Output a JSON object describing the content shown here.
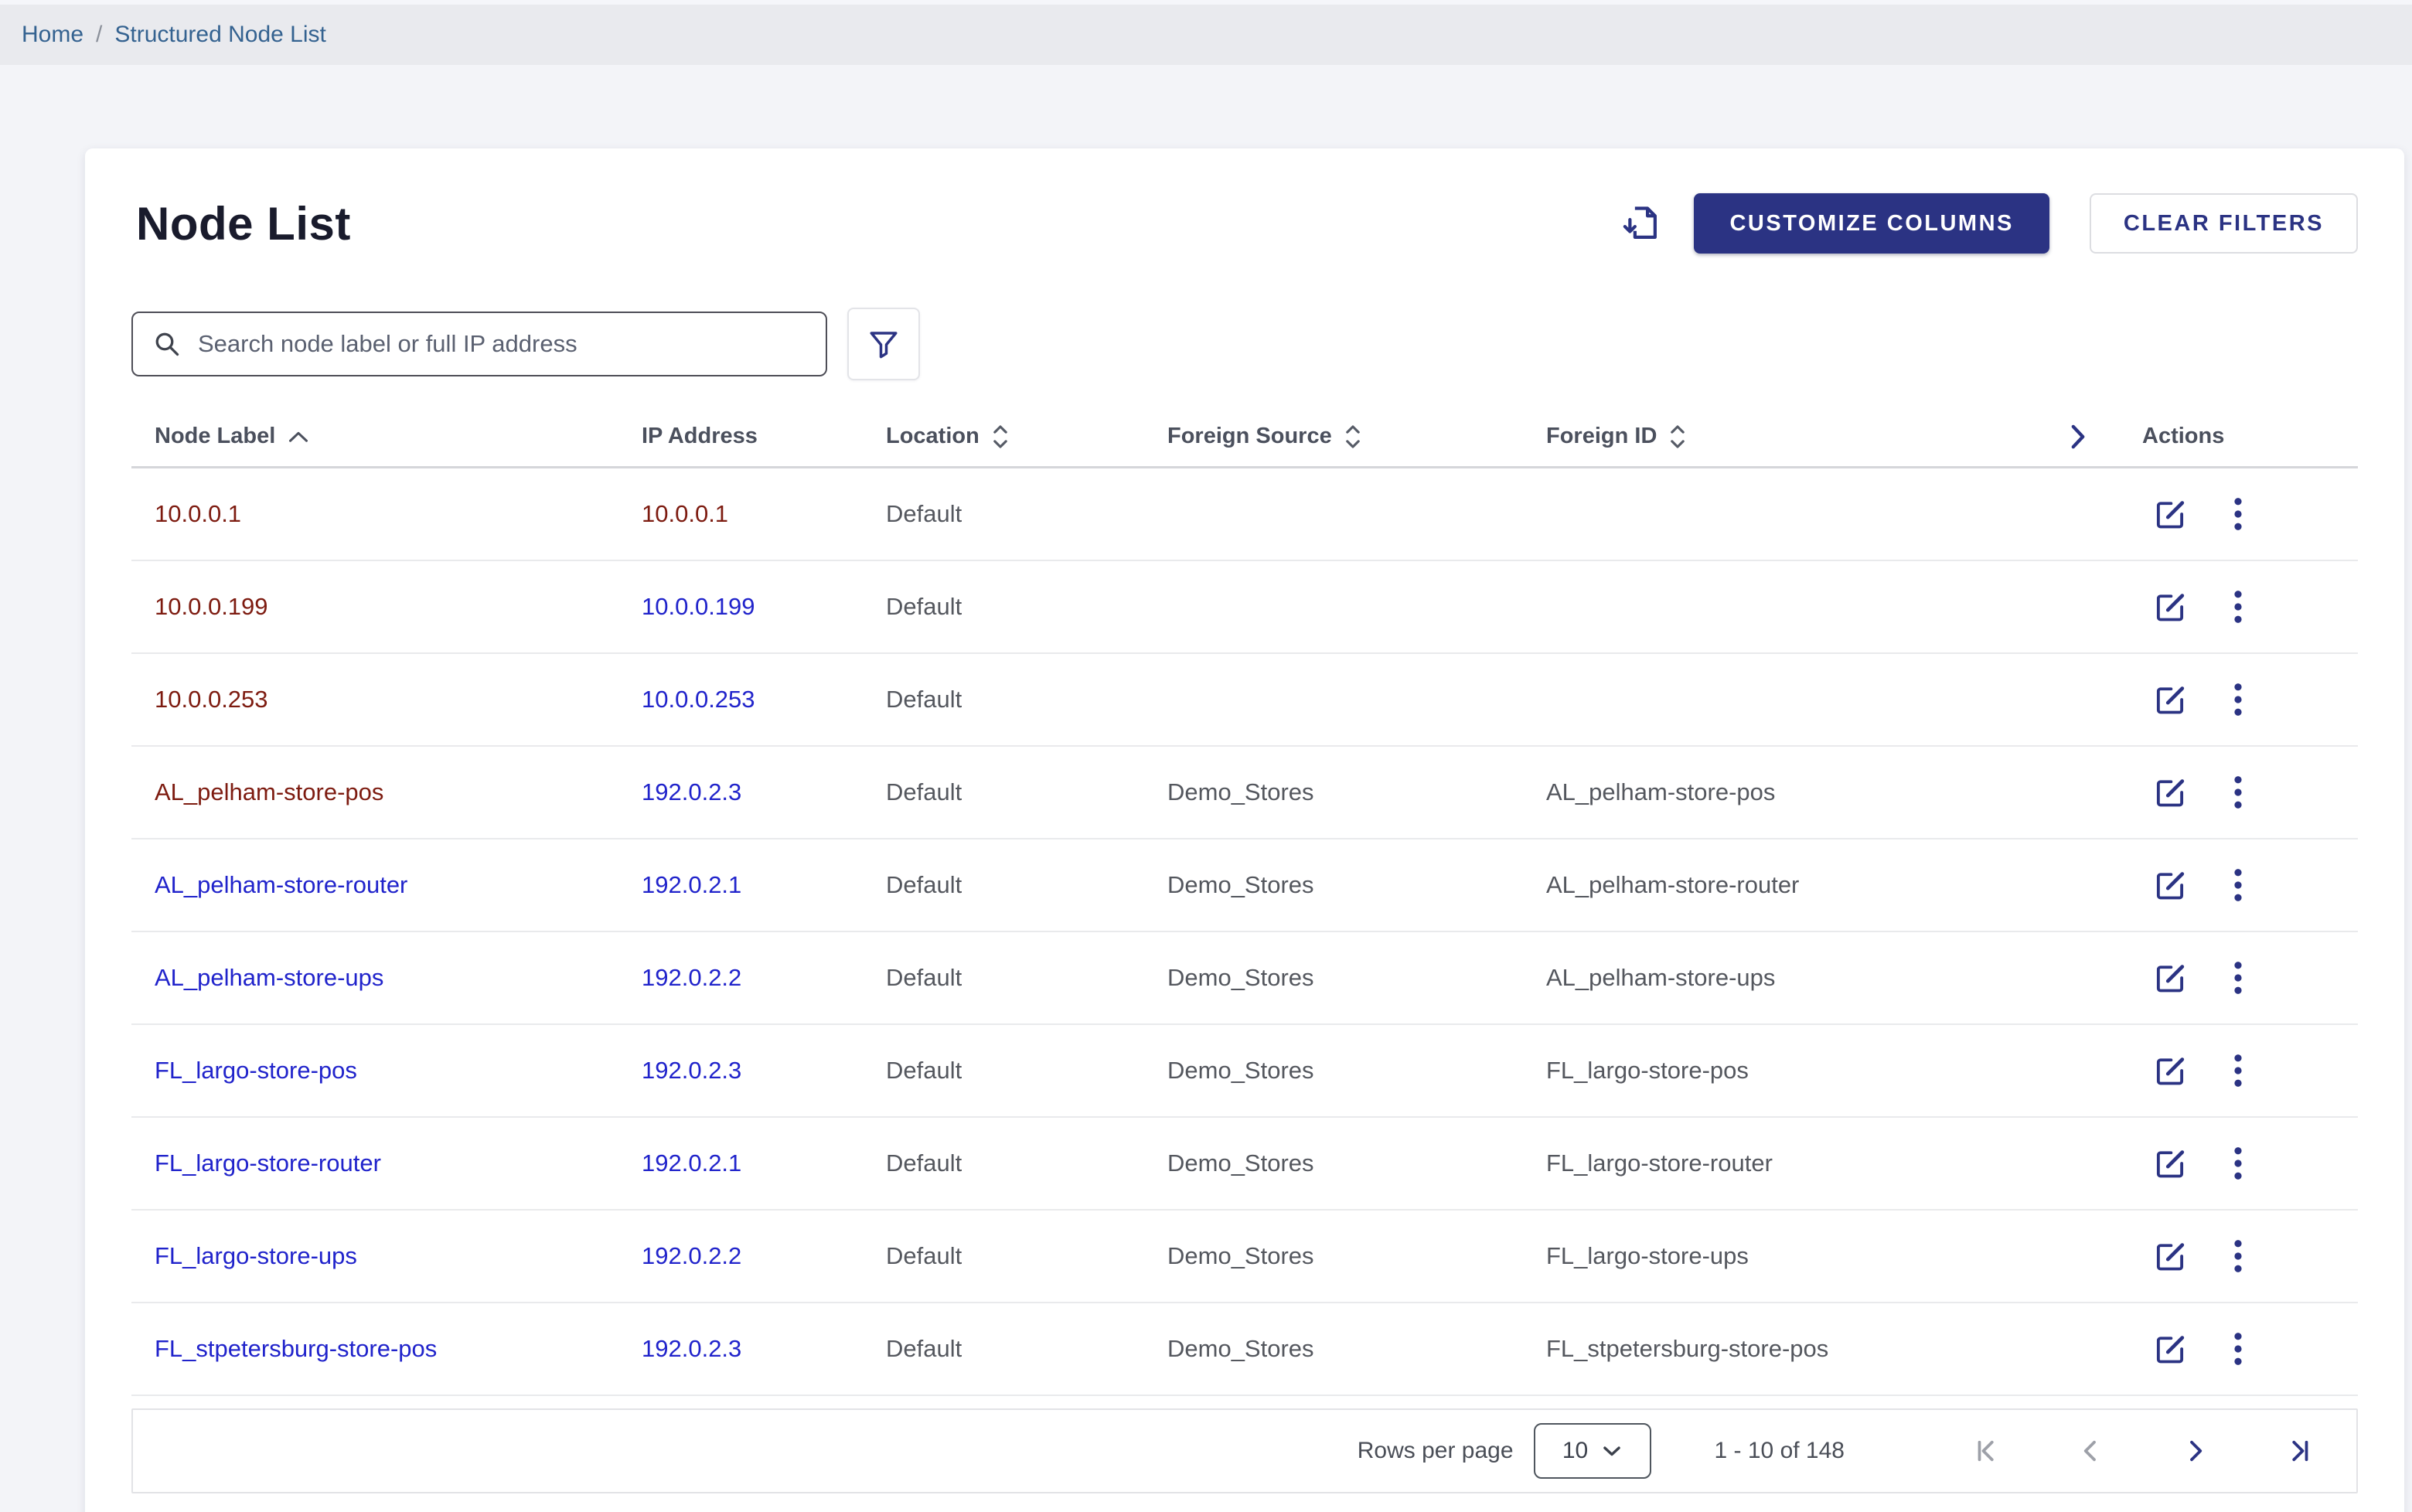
{
  "breadcrumb": {
    "separator": "/",
    "items": [
      {
        "label": "Home"
      },
      {
        "label": "Structured Node List"
      }
    ]
  },
  "page": {
    "title": "Node List"
  },
  "toolbar": {
    "download_icon": "file-download-icon",
    "customize_columns_label": "CUSTOMIZE COLUMNS",
    "clear_filters_label": "CLEAR FILTERS"
  },
  "search": {
    "placeholder": "Search node label or full IP address",
    "value": "",
    "search_icon": "magnifier-icon",
    "filter_icon": "funnel-icon"
  },
  "table": {
    "columns": [
      {
        "label": "Node Label",
        "sort": "asc"
      },
      {
        "label": "IP Address",
        "sort": null
      },
      {
        "label": "Location",
        "sort": "unsorted"
      },
      {
        "label": "Foreign Source",
        "sort": "unsorted"
      },
      {
        "label": "Foreign ID",
        "sort": "unsorted"
      },
      {
        "label": "",
        "expand_icon": "chevron-right-icon"
      },
      {
        "label": "Actions",
        "sort": null
      }
    ],
    "rows": [
      {
        "node_label": "10.0.0.1",
        "ip": "10.0.0.1",
        "location": "Default",
        "foreign_source": "",
        "foreign_id": "",
        "label_visited": true,
        "ip_visited": true
      },
      {
        "node_label": "10.0.0.199",
        "ip": "10.0.0.199",
        "location": "Default",
        "foreign_source": "",
        "foreign_id": "",
        "label_visited": true,
        "ip_visited": false
      },
      {
        "node_label": "10.0.0.253",
        "ip": "10.0.0.253",
        "location": "Default",
        "foreign_source": "",
        "foreign_id": "",
        "label_visited": true,
        "ip_visited": false
      },
      {
        "node_label": "AL_pelham-store-pos",
        "ip": "192.0.2.3",
        "location": "Default",
        "foreign_source": "Demo_Stores",
        "foreign_id": "AL_pelham-store-pos",
        "label_visited": true,
        "ip_visited": false
      },
      {
        "node_label": "AL_pelham-store-router",
        "ip": "192.0.2.1",
        "location": "Default",
        "foreign_source": "Demo_Stores",
        "foreign_id": "AL_pelham-store-router",
        "label_visited": false,
        "ip_visited": false
      },
      {
        "node_label": "AL_pelham-store-ups",
        "ip": "192.0.2.2",
        "location": "Default",
        "foreign_source": "Demo_Stores",
        "foreign_id": "AL_pelham-store-ups",
        "label_visited": false,
        "ip_visited": false
      },
      {
        "node_label": "FL_largo-store-pos",
        "ip": "192.0.2.3",
        "location": "Default",
        "foreign_source": "Demo_Stores",
        "foreign_id": "FL_largo-store-pos",
        "label_visited": false,
        "ip_visited": false
      },
      {
        "node_label": "FL_largo-store-router",
        "ip": "192.0.2.1",
        "location": "Default",
        "foreign_source": "Demo_Stores",
        "foreign_id": "FL_largo-store-router",
        "label_visited": false,
        "ip_visited": false
      },
      {
        "node_label": "FL_largo-store-ups",
        "ip": "192.0.2.2",
        "location": "Default",
        "foreign_source": "Demo_Stores",
        "foreign_id": "FL_largo-store-ups",
        "label_visited": false,
        "ip_visited": false
      },
      {
        "node_label": "FL_stpetersburg-store-pos",
        "ip": "192.0.2.3",
        "location": "Default",
        "foreign_source": "Demo_Stores",
        "foreign_id": "FL_stpetersburg-store-pos",
        "label_visited": false,
        "ip_visited": false
      }
    ],
    "row_actions": {
      "edit_icon": "edit-icon",
      "menu_icon": "kebab-menu-icon"
    }
  },
  "pagination": {
    "rows_per_page_label": "Rows per page",
    "rows_per_page_value": "10",
    "range_label": "1 - 10 of 148",
    "first_enabled": false,
    "prev_enabled": false,
    "next_enabled": true,
    "last_enabled": true
  },
  "colors": {
    "primary": "#2b3383",
    "link": "#2023cb",
    "visited_link": "#7d1b10",
    "breadcrumb_link": "#346290",
    "body_text": "#54575e",
    "header_text": "#4b505d",
    "disabled_icon": "#9da0a8",
    "card_bg": "#ffffff",
    "page_bg": "#f3f4f8",
    "breadcrumb_bg": "#e9eaee"
  }
}
